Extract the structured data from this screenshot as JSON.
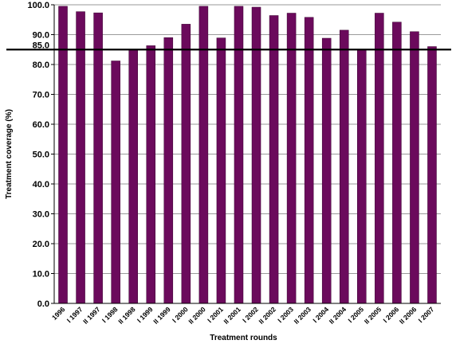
{
  "chart_data": {
    "type": "bar",
    "title": "",
    "xlabel": "Treatment rounds",
    "ylabel": "Treatment coverage (%)",
    "ylim": [
      0,
      100
    ],
    "yticks": [
      "0.0",
      "10.0",
      "20.0",
      "30.0",
      "40.0",
      "50.0",
      "60.0",
      "70.0",
      "80.0",
      "90.0",
      "100.0"
    ],
    "grid": "horizontal",
    "reference_line": {
      "value": 85.0,
      "label": "85.0"
    },
    "bar_color": "#6b0a5c",
    "categories": [
      "1996",
      "I 1997",
      "II 1997",
      "I 1998",
      "II 1998",
      "I 1999",
      "II 1999",
      "I 2000",
      "II 2000",
      "I 2001",
      "II 2001",
      "I 2002",
      "II 2002",
      "I 2003",
      "II 2003",
      "I 2004",
      "II 2004",
      "I 2005",
      "II 2005",
      "I 2006",
      "II 2006",
      "I 2007"
    ],
    "values": [
      99.5,
      97.7,
      97.3,
      81.2,
      85.0,
      86.3,
      89.0,
      93.5,
      99.5,
      88.9,
      99.5,
      99.2,
      96.4,
      97.2,
      95.8,
      88.8,
      91.5,
      84.9,
      97.2,
      94.2,
      91.0,
      86.0
    ]
  }
}
